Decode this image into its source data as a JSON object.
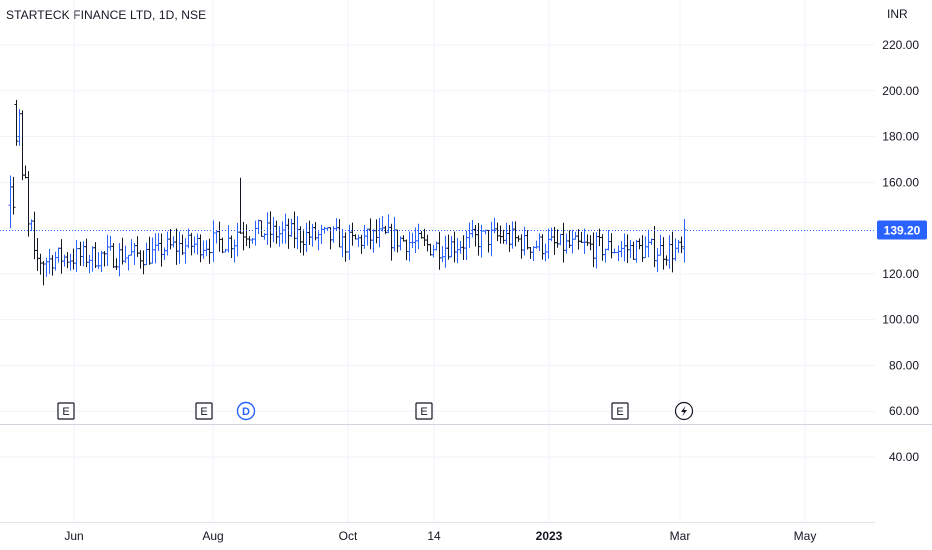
{
  "chart_data": {
    "type": "ohlc",
    "title": "STARTECK FINANCE LTD, 1D, NSE",
    "unit": "INR",
    "ylim": [
      32,
      228
    ],
    "y_ticks": [
      "220.00",
      "200.00",
      "180.00",
      "160.00",
      "140.00",
      "120.00",
      "100.00",
      "80.00",
      "60.00",
      "40.00"
    ],
    "x_ticks": [
      "Jun",
      "Aug",
      "Oct",
      "14",
      "2023",
      "Mar",
      "May"
    ],
    "last_price": "139.20",
    "last_price_value": 139.2,
    "colors": {
      "up": "#2962ff",
      "down": "#131722",
      "price_badge": "#2962ff",
      "grid": "#f0f3fa",
      "text": "#131722"
    },
    "events": [
      {
        "label": "E",
        "type": "earnings"
      },
      {
        "label": "E",
        "type": "earnings"
      },
      {
        "label": "D",
        "type": "dividend"
      },
      {
        "label": "E",
        "type": "earnings"
      },
      {
        "label": "E",
        "type": "earnings"
      },
      {
        "label": "",
        "type": "split",
        "icon": "lightning-icon"
      }
    ],
    "series_anchors": [
      {
        "label": "start",
        "open": 150,
        "high": 163,
        "low": 140,
        "close": 158
      },
      {
        "label": "peak",
        "high": 196,
        "low": 176
      },
      {
        "label": "drop-low",
        "low": 115
      },
      {
        "label": "aug-spike",
        "high": 162
      },
      {
        "label": "range-mid",
        "value": 132
      },
      {
        "label": "end",
        "open": 131,
        "high": 144,
        "low": 125,
        "close": 139.2
      }
    ]
  }
}
